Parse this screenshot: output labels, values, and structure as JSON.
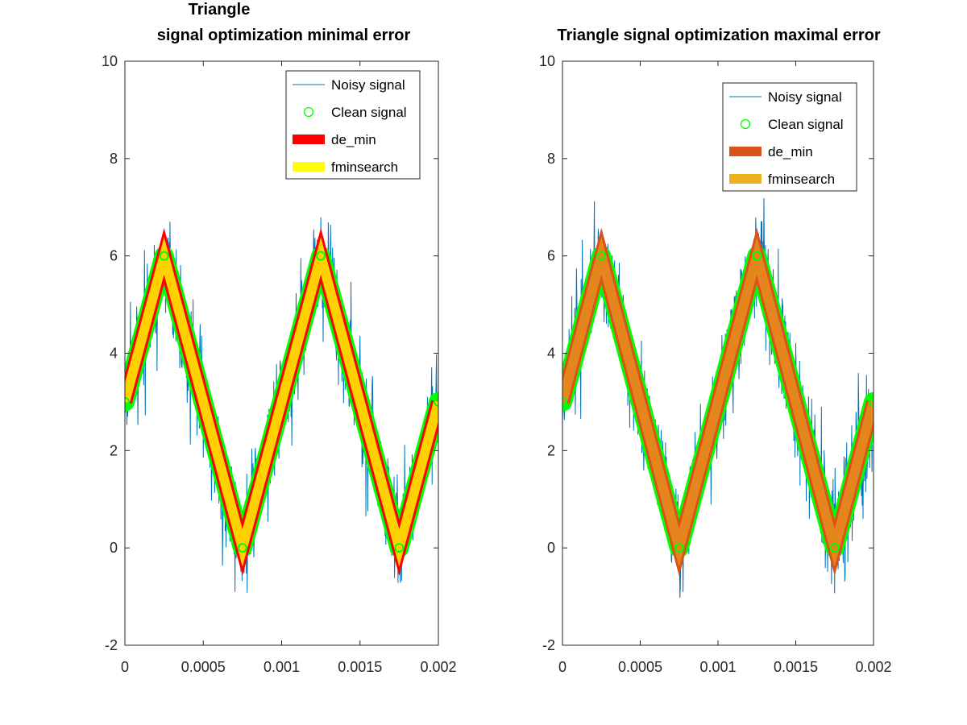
{
  "chart_data": [
    {
      "type": "line",
      "title_lines": [
        "Triangle",
        "signal optimization minimal error"
      ],
      "xlabel": "",
      "ylabel": "",
      "xlim": [
        0,
        0.002
      ],
      "ylim": [
        -2,
        10
      ],
      "xticks": [
        0,
        0.0005,
        0.001,
        0.0015,
        0.002
      ],
      "xtick_labels": [
        "0",
        "0.0005",
        "0.001",
        "0.0015",
        "0.002"
      ],
      "yticks": [
        -2,
        0,
        2,
        4,
        6,
        8,
        10
      ],
      "ytick_labels": [
        "-2",
        "0",
        "2",
        "4",
        "6",
        "8",
        "10"
      ],
      "grid": false,
      "legend_position": "top-right",
      "noise": {
        "amplitude": 1.0,
        "spike_max": 1.9,
        "samples": 800,
        "seed": 7
      },
      "series": [
        {
          "name": "Noisy signal",
          "style": "noisy",
          "color": "#0072bd"
        },
        {
          "name": "Clean signal",
          "style": "markers",
          "color": "#00ff00",
          "x": [
            0,
            0.00025,
            0.00075,
            0.00125,
            0.00175,
            0.002
          ],
          "y": [
            3,
            6,
            0,
            6,
            0,
            3
          ]
        },
        {
          "name": "de_min",
          "style": "thick",
          "color": "#ff0000",
          "x": [
            0,
            0.00025,
            0.00075,
            0.00125,
            0.00175,
            0.002
          ],
          "y": [
            3,
            6,
            0,
            6,
            0,
            3
          ]
        },
        {
          "name": "fminsearch",
          "style": "thick-top",
          "color": "#ffff00",
          "x": [
            0,
            0.00025,
            0.00075,
            0.00125,
            0.00175,
            0.002
          ],
          "y": [
            3,
            6,
            0,
            6,
            0,
            3
          ]
        }
      ]
    },
    {
      "type": "line",
      "title_lines": [
        "Triangle signal optimization maximal error"
      ],
      "xlabel": "",
      "ylabel": "",
      "xlim": [
        0,
        0.002
      ],
      "ylim": [
        -2,
        10
      ],
      "xticks": [
        0,
        0.0005,
        0.001,
        0.0015,
        0.002
      ],
      "xtick_labels": [
        "0",
        "0.0005",
        "0.001",
        "0.0015",
        "0.002"
      ],
      "yticks": [
        -2,
        0,
        2,
        4,
        6,
        8,
        10
      ],
      "ytick_labels": [
        "-2",
        "0",
        "2",
        "4",
        "6",
        "8",
        "10"
      ],
      "grid": false,
      "legend_position": "top-right",
      "noise": {
        "amplitude": 1.0,
        "spike_max": 1.9,
        "samples": 800,
        "seed": 19
      },
      "series": [
        {
          "name": "Noisy signal",
          "style": "noisy",
          "color": "#0072bd"
        },
        {
          "name": "Clean signal",
          "style": "markers",
          "color": "#00ff00",
          "x": [
            0,
            0.00025,
            0.00075,
            0.00125,
            0.00175,
            0.002
          ],
          "y": [
            3,
            6,
            0,
            6,
            0,
            3
          ]
        },
        {
          "name": "de_min",
          "style": "thick",
          "color": "#d95319",
          "x": [
            0,
            0.00025,
            0.00075,
            0.00125,
            0.00175,
            0.002
          ],
          "y": [
            3,
            6,
            0,
            6,
            0,
            3
          ]
        },
        {
          "name": "fminsearch",
          "style": "thick-top",
          "color": "#edb120",
          "x": [
            0,
            0.00025,
            0.00075,
            0.00125,
            0.00175,
            0.002
          ],
          "y": [
            3,
            6,
            0,
            6,
            0,
            3
          ]
        }
      ]
    }
  ]
}
